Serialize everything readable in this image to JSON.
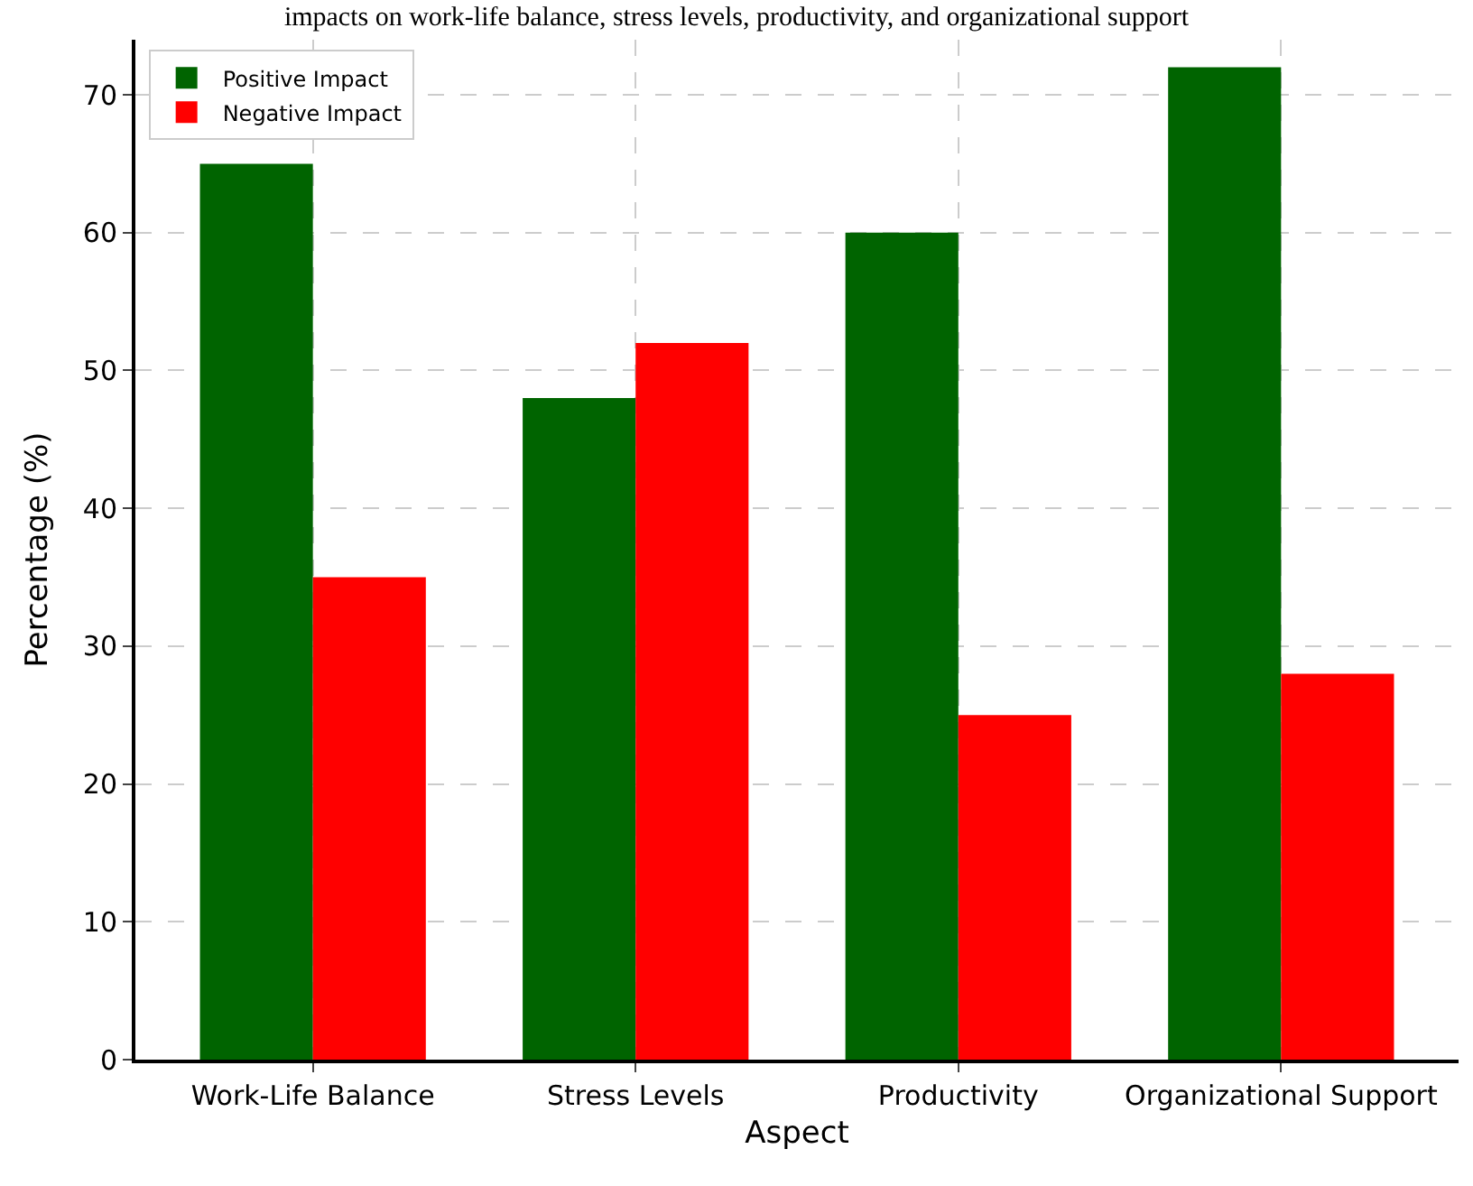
{
  "chart_data": {
    "type": "bar",
    "title": "impacts on work-life balance, stress levels, productivity, and organizational support",
    "xlabel": "Aspect",
    "ylabel": "Percentage (%)",
    "categories": [
      "Work-Life Balance",
      "Stress Levels",
      "Productivity",
      "Organizational Support"
    ],
    "series": [
      {
        "name": "Positive Impact",
        "color": "#006400",
        "values": [
          65,
          48,
          60,
          72
        ]
      },
      {
        "name": "Negative Impact",
        "color": "#ff0000",
        "values": [
          35,
          52,
          25,
          28
        ]
      }
    ],
    "ylim": [
      0,
      74
    ],
    "yticks": [
      0,
      10,
      20,
      30,
      40,
      50,
      60,
      70
    ],
    "grid": true,
    "legend": "top left"
  }
}
